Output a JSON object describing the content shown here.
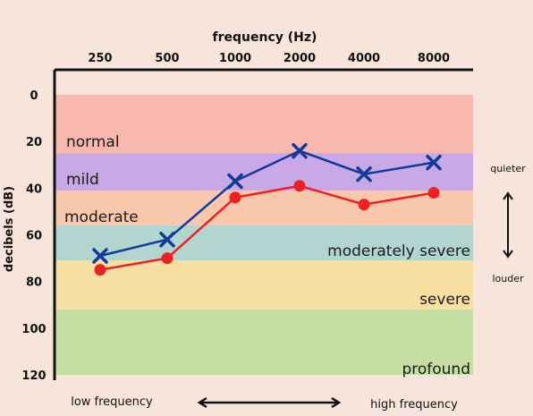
{
  "chart_data": {
    "type": "line",
    "title": "frequency (Hz)",
    "ylabel": "decibels (dB)",
    "categories": [
      "250",
      "500",
      "1000",
      "2000",
      "4000",
      "8000"
    ],
    "y_ticks": [
      "0",
      "20",
      "40",
      "60",
      "80",
      "100",
      "120"
    ],
    "ylim": [
      0,
      120
    ],
    "y_axis_inverted": true,
    "grid": false,
    "series": [
      {
        "marker": "x",
        "color": "#0f3b9c",
        "values": [
          69,
          62,
          37,
          24,
          34,
          29
        ]
      },
      {
        "marker": "circle",
        "color": "#ef2020",
        "values": [
          75,
          70,
          44,
          39,
          47,
          42
        ]
      }
    ],
    "bands": [
      {
        "label": "normal",
        "from": 0,
        "to": 25,
        "color": "#f8b8ae"
      },
      {
        "label": "mild",
        "from": 25,
        "to": 41,
        "color": "#c9a8e6"
      },
      {
        "label": "moderate",
        "from": 41,
        "to": 56,
        "color": "#f9c8ac"
      },
      {
        "label": "moderately severe",
        "from": 56,
        "to": 71,
        "color": "#b2d6cf"
      },
      {
        "label": "severe",
        "from": 71,
        "to": 92,
        "color": "#f8dfa2"
      },
      {
        "label": "profound",
        "from": 92,
        "to": 120,
        "color": "#c6dea1"
      }
    ],
    "annotations": {
      "quieter": "quieter",
      "louder": "louder",
      "low_frequency": "low frequency",
      "high_frequency": "high frequency"
    }
  }
}
